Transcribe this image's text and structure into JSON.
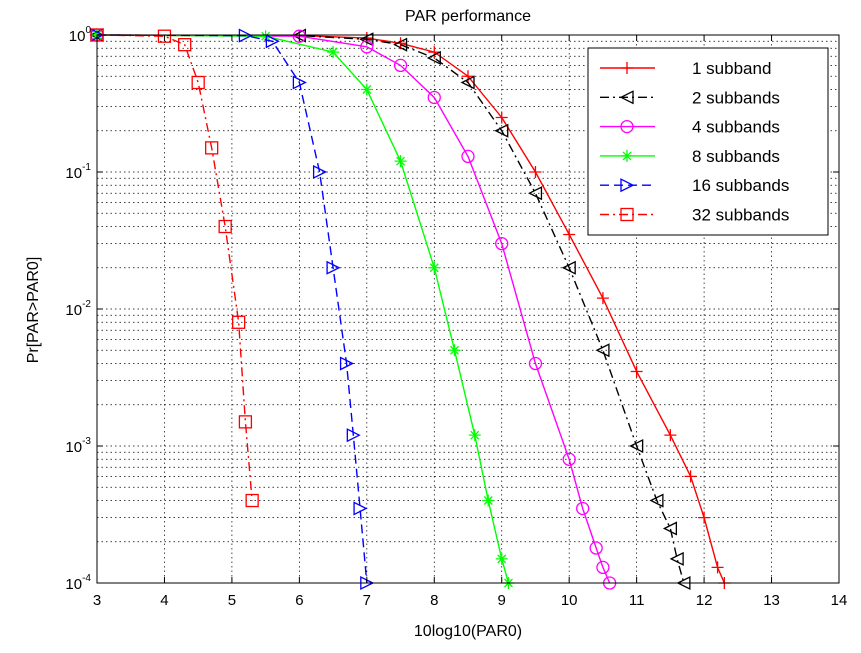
{
  "chart_data": {
    "type": "line",
    "title": "PAR performance",
    "xlabel": "10log10(PAR0)",
    "ylabel": "Pr[PAR>PAR0]",
    "xlim": [
      3,
      14
    ],
    "ylim": [
      0.0001,
      1
    ],
    "yscale": "log",
    "grid": true,
    "legend_position": "top-right",
    "x_ticks": [
      "3",
      "4",
      "5",
      "6",
      "7",
      "8",
      "9",
      "10",
      "11",
      "12",
      "13",
      "14"
    ],
    "y_ticks": [
      {
        "base": "10",
        "exp": "0"
      },
      {
        "base": "10",
        "exp": "-1"
      },
      {
        "base": "10",
        "exp": "-2"
      },
      {
        "base": "10",
        "exp": "-3"
      },
      {
        "base": "10",
        "exp": "-4"
      }
    ],
    "series": [
      {
        "name": "1 subband",
        "color": "#ff0000",
        "dash": "solid",
        "marker": "plus",
        "x": [
          3,
          6,
          7,
          7.5,
          8,
          8.5,
          9,
          9.5,
          10,
          10.5,
          11,
          11.5,
          11.8,
          12,
          12.2,
          12.3
        ],
        "y": [
          1,
          0.99,
          0.95,
          0.87,
          0.75,
          0.5,
          0.25,
          0.1,
          0.035,
          0.012,
          0.0035,
          0.0012,
          0.0006,
          0.0003,
          0.00013,
          0.0001
        ]
      },
      {
        "name": "2 subbands",
        "color": "#000000",
        "dash": "dashdot",
        "marker": "triangle-left",
        "x": [
          3,
          6,
          7,
          7.5,
          8,
          8.5,
          9,
          9.5,
          10,
          10.5,
          11,
          11.3,
          11.5,
          11.6,
          11.7
        ],
        "y": [
          1,
          0.99,
          0.93,
          0.85,
          0.68,
          0.45,
          0.2,
          0.07,
          0.02,
          0.005,
          0.001,
          0.0004,
          0.00025,
          0.00015,
          0.0001
        ]
      },
      {
        "name": "4 subbands",
        "color": "#ff00ff",
        "dash": "solid",
        "marker": "circle",
        "x": [
          3,
          6,
          7,
          7.5,
          8,
          8.5,
          9,
          9.5,
          10,
          10.2,
          10.4,
          10.5,
          10.6
        ],
        "y": [
          1,
          0.98,
          0.82,
          0.6,
          0.35,
          0.13,
          0.03,
          0.004,
          0.0008,
          0.00035,
          0.00018,
          0.00013,
          0.0001
        ]
      },
      {
        "name": "8 subbands",
        "color": "#00ff00",
        "dash": "solid",
        "marker": "star",
        "x": [
          3,
          5.5,
          6.5,
          7,
          7.5,
          8,
          8.3,
          8.6,
          8.8,
          9,
          9.1
        ],
        "y": [
          1,
          0.98,
          0.75,
          0.4,
          0.12,
          0.02,
          0.005,
          0.0012,
          0.0004,
          0.00015,
          0.0001
        ]
      },
      {
        "name": "16 subbands",
        "color": "#0000ff",
        "dash": "dash",
        "marker": "triangle-right",
        "x": [
          3,
          5.2,
          5.6,
          6,
          6.3,
          6.5,
          6.7,
          6.8,
          6.9,
          7
        ],
        "y": [
          1,
          0.99,
          0.9,
          0.45,
          0.1,
          0.02,
          0.004,
          0.0012,
          0.00035,
          0.0001
        ]
      },
      {
        "name": "32 subbands",
        "color": "#ff0000",
        "dash": "dashdot",
        "marker": "square",
        "x": [
          3,
          4,
          4.3,
          4.5,
          4.7,
          4.9,
          5.1,
          5.2,
          5.3
        ],
        "y": [
          1,
          0.98,
          0.85,
          0.45,
          0.15,
          0.04,
          0.008,
          0.0015,
          0.0004
        ]
      }
    ]
  }
}
